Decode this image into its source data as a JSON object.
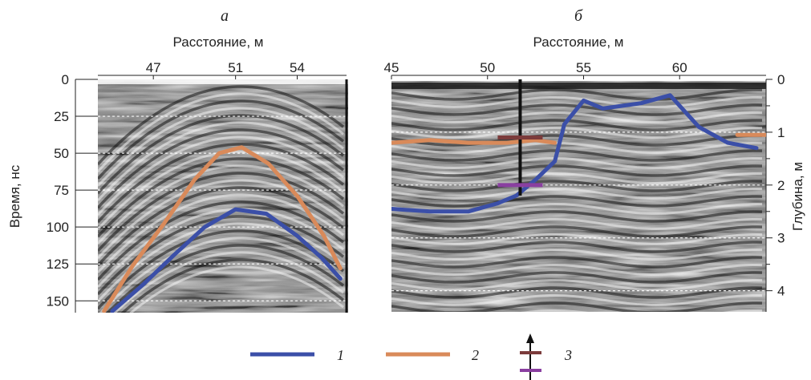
{
  "chart_data": [
    {
      "panel_label": "а",
      "type": "line",
      "xlabel": "Расстояние, м",
      "ylabel": "Время, нс",
      "x_ticks": [
        "47",
        "51",
        "54"
      ],
      "y_ticks": [
        "0",
        "25",
        "50",
        "75",
        "100",
        "125",
        "150"
      ],
      "xlim": [
        44.3,
        56.4
      ],
      "ylim": [
        0,
        158
      ],
      "y_inverted": true,
      "grid": "dashed horizontal",
      "background": "grayscale radargram",
      "series": [
        {
          "legend": "1",
          "color": "#3b4fa8",
          "x": [
            45.0,
            46.5,
            48.0,
            49.5,
            51.0,
            52.5,
            54.0,
            55.2,
            56.1
          ],
          "y": [
            157,
            139,
            119,
            100,
            88,
            91,
            106,
            121,
            135
          ]
        },
        {
          "legend": "2",
          "color": "#d98a5a",
          "x": [
            44.6,
            46.0,
            47.5,
            49.0,
            50.2,
            51.3,
            52.6,
            54.0,
            55.3,
            56.1
          ],
          "y": [
            157,
            126,
            98,
            68,
            50,
            46,
            57,
            79,
            106,
            128
          ]
        }
      ]
    },
    {
      "panel_label": "б",
      "type": "line",
      "xlabel": "Расстояние, м",
      "ylabel": "Глубина, м",
      "x_ticks": [
        "45",
        "50",
        "55",
        "60"
      ],
      "y_ticks": [
        "0",
        "1",
        "2",
        "3",
        "4"
      ],
      "xlim": [
        45,
        64.5
      ],
      "ylim": [
        0,
        4.4
      ],
      "y_inverted": true,
      "grid": "dashed horizontal",
      "background": "grayscale radargram",
      "series": [
        {
          "legend": "1",
          "color": "#3b4fa8",
          "x": [
            45,
            47,
            49,
            50.5,
            51.5,
            52.5,
            53.5,
            54,
            55,
            56,
            57,
            58,
            59.5,
            61,
            62.5,
            64
          ],
          "y": [
            2.45,
            2.5,
            2.5,
            2.35,
            2.2,
            1.9,
            1.55,
            0.85,
            0.4,
            0.55,
            0.5,
            0.45,
            0.3,
            0.9,
            1.2,
            1.3
          ]
        },
        {
          "legend": "2",
          "color": "#d98a5a",
          "x": [
            45,
            47,
            49,
            51,
            52.5,
            53.5
          ],
          "y": [
            1.2,
            1.15,
            1.2,
            1.2,
            1.15,
            1.2
          ]
        },
        {
          "legend": "2",
          "color": "#d98a5a",
          "x": [
            63,
            64.5
          ],
          "y": [
            1.05,
            1.05
          ]
        }
      ],
      "borehole": {
        "legend": "3",
        "x": 51.7,
        "depth_top": 0,
        "depth_bottom": 2.2,
        "marker_upper": {
          "depth": 1.1,
          "color": "#7b3b3b"
        },
        "marker_lower": {
          "depth": 2.0,
          "color": "#8a3fa0"
        }
      }
    }
  ],
  "legend": {
    "items": [
      {
        "label": "1",
        "color": "#3b4fa8"
      },
      {
        "label": "2",
        "color": "#d98a5a"
      },
      {
        "label": "3",
        "colors": [
          "#7b3b3b",
          "#8a3fa0"
        ]
      }
    ]
  }
}
